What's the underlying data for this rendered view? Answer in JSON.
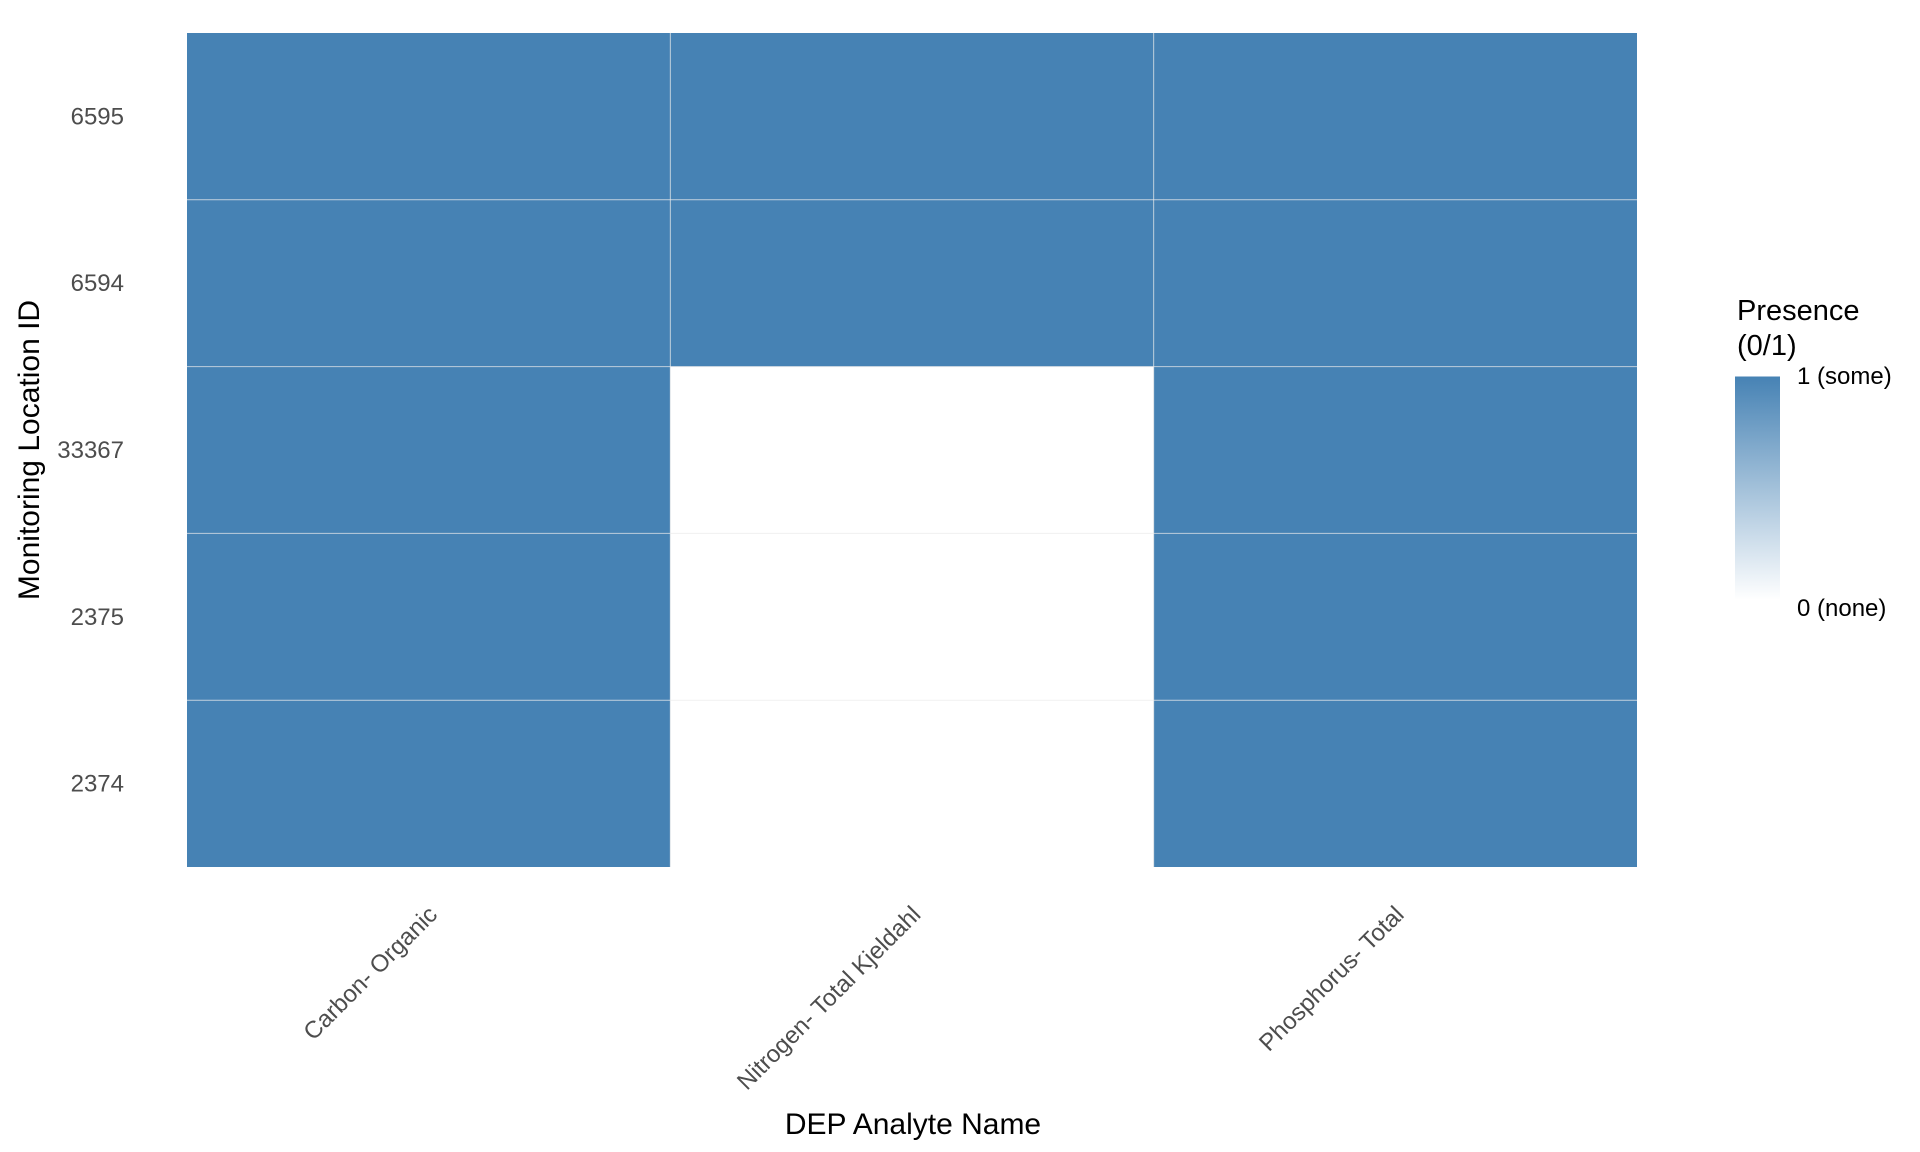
{
  "chart_data": {
    "type": "heatmap",
    "title": "",
    "xlabel": "DEP Analyte Name",
    "ylabel": "Monitoring Location ID",
    "x_categories": [
      "Carbon- Organic",
      "Nitrogen- Total Kjeldahl",
      "Phosphorus- Total"
    ],
    "y_categories": [
      "6595",
      "6594",
      "33367",
      "2375",
      "2374"
    ],
    "values": [
      [
        1,
        1,
        1
      ],
      [
        1,
        1,
        1
      ],
      [
        1,
        0,
        1
      ],
      [
        1,
        0,
        1
      ],
      [
        1,
        0,
        1
      ]
    ],
    "legend": {
      "title_lines": [
        "Presence",
        "(0/1)"
      ],
      "labels": [
        "1 (some)",
        "0 (none)"
      ],
      "range": [
        0,
        1
      ],
      "placement": "right"
    },
    "colors": {
      "high": "#4682B4",
      "low": "#FFFFFF",
      "grid": "#EBEBEB"
    },
    "grid": true
  }
}
